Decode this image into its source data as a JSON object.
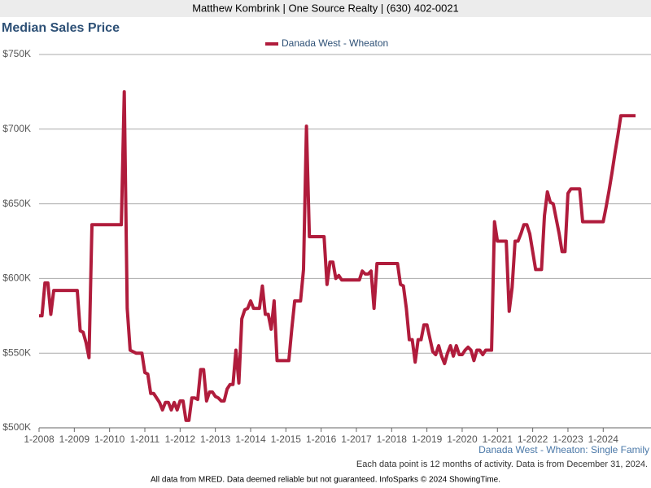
{
  "header": "Matthew Kombrink | One Source Realty | (630) 402-0021",
  "footer": "All data from MRED. Data deemed reliable but not guaranteed. InfoSparks © 2024 ShowingTime.",
  "chart_data": {
    "type": "line",
    "title": "Median Sales Price",
    "caption": "Danada West - Wheaton: Single Family",
    "note": "Each data point is 12 months of activity. Data is from December 31, 2024.",
    "categories": [
      "1-2008",
      null,
      null,
      null,
      null,
      null,
      null,
      null,
      null,
      null,
      null,
      null,
      "1-2009",
      null,
      null,
      null,
      null,
      null,
      null,
      null,
      null,
      null,
      null,
      null,
      "1-2010",
      null,
      null,
      null,
      null,
      null,
      null,
      null,
      null,
      null,
      null,
      null,
      "1-2011",
      null,
      null,
      null,
      null,
      null,
      null,
      null,
      null,
      null,
      null,
      null,
      "1-2012",
      null,
      null,
      null,
      null,
      null,
      null,
      null,
      null,
      null,
      null,
      null,
      "1-2013",
      null,
      null,
      null,
      null,
      null,
      null,
      null,
      null,
      null,
      null,
      null,
      "1-2014",
      null,
      null,
      null,
      null,
      null,
      null,
      null,
      null,
      null,
      null,
      null,
      "1-2015",
      null,
      null,
      null,
      null,
      null,
      null,
      null,
      null,
      null,
      null,
      null,
      "1-2016",
      null,
      null,
      null,
      null,
      null,
      null,
      null,
      null,
      null,
      null,
      null,
      "1-2017",
      null,
      null,
      null,
      null,
      null,
      null,
      null,
      null,
      null,
      null,
      null,
      "1-2018",
      null,
      null,
      null,
      null,
      null,
      null,
      null,
      null,
      null,
      null,
      null,
      "1-2019",
      null,
      null,
      null,
      null,
      null,
      null,
      null,
      null,
      null,
      null,
      null,
      "1-2020",
      null,
      null,
      null,
      null,
      null,
      null,
      null,
      null,
      null,
      null,
      null,
      "1-2021",
      null,
      null,
      null,
      null,
      null,
      null,
      null,
      null,
      null,
      null,
      null,
      "1-2022",
      null,
      null,
      null,
      null,
      null,
      null,
      null,
      null,
      null,
      null,
      null,
      "1-2023",
      null,
      null,
      null,
      null,
      null,
      null,
      null,
      null,
      null,
      null,
      null,
      "1-2024",
      null,
      null,
      null,
      null,
      null,
      null,
      null,
      null,
      null,
      null,
      null
    ],
    "series": [
      {
        "name": "Danada West - Wheaton",
        "color": "#b01c3c",
        "values": [
          575000,
          575000,
          597000,
          597000,
          576000,
          592000,
          592000,
          592000,
          592000,
          592000,
          592000,
          592000,
          592000,
          592000,
          565000,
          564000,
          557000,
          547000,
          636000,
          636000,
          636000,
          636000,
          636000,
          636000,
          636000,
          636000,
          636000,
          636000,
          636000,
          725000,
          580000,
          552000,
          551000,
          550000,
          550000,
          550000,
          537000,
          536000,
          523000,
          523000,
          520000,
          517000,
          512000,
          517000,
          517000,
          512000,
          517000,
          512000,
          518000,
          518000,
          505000,
          505000,
          520000,
          520000,
          519000,
          539000,
          539000,
          518000,
          524000,
          524000,
          521000,
          520000,
          518000,
          518000,
          526000,
          529000,
          529000,
          552000,
          530000,
          573000,
          579000,
          580000,
          585000,
          580000,
          580000,
          580000,
          595000,
          576000,
          576000,
          566000,
          585000,
          545000,
          545000,
          545000,
          545000,
          545000,
          566000,
          585000,
          585000,
          585000,
          606000,
          702000,
          628000,
          628000,
          628000,
          628000,
          628000,
          628000,
          596000,
          611000,
          611000,
          600000,
          602000,
          599000,
          599000,
          599000,
          599000,
          599000,
          599000,
          599000,
          605000,
          603000,
          603000,
          605000,
          580000,
          610000,
          610000,
          610000,
          610000,
          610000,
          610000,
          610000,
          610000,
          596000,
          595000,
          580000,
          559000,
          559000,
          544000,
          559000,
          559000,
          569000,
          569000,
          560000,
          551000,
          549000,
          555000,
          548000,
          543000,
          550000,
          555000,
          548000,
          555000,
          549000,
          549000,
          552000,
          554000,
          552000,
          545000,
          552000,
          552000,
          549000,
          552000,
          552000,
          552000,
          638000,
          625000,
          625000,
          625000,
          625000,
          578000,
          594000,
          625000,
          625000,
          630000,
          636000,
          636000,
          630000,
          618000,
          606000,
          606000,
          606000,
          642000,
          658000,
          651000,
          650000,
          640000,
          630000,
          618000,
          618000,
          657000,
          660000,
          660000,
          660000,
          660000,
          638000,
          638000,
          638000,
          638000,
          638000,
          638000,
          638000,
          638000,
          648000,
          659000,
          671000,
          684000,
          696000,
          709000,
          709000,
          709000,
          709000,
          709000,
          709000
        ]
      }
    ],
    "ylim": [
      500000,
      750000
    ],
    "yticks": [
      {
        "value": 500000,
        "label": "$500K"
      },
      {
        "value": 550000,
        "label": "$550K"
      },
      {
        "value": 600000,
        "label": "$600K"
      },
      {
        "value": 650000,
        "label": "$650K"
      },
      {
        "value": 700000,
        "label": "$700K"
      },
      {
        "value": 750000,
        "label": "$750K"
      }
    ],
    "grid": true
  }
}
